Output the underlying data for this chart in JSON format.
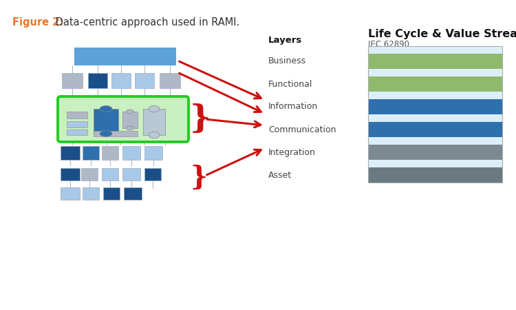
{
  "title_label": "Figure 2:",
  "title_text": " Data-centric approach used in RAMI.",
  "title_color": "#E8762C",
  "title_text_color": "#333333",
  "lc_title": "Life Cycle & Value Stream",
  "lc_subtitle": "IEC 62890",
  "layers": [
    "Business",
    "Functional",
    "Information",
    "Communication",
    "Integration",
    "Asset"
  ],
  "stripe_colors": [
    "#dceef8",
    "#8fba6b",
    "#dceef8",
    "#8fba6b",
    "#dceef8",
    "#2e6fad",
    "#c8dce8",
    "#2e6fad",
    "#c8dce8",
    "#7a8a90",
    "#c8dce8",
    "#6a7a80"
  ],
  "bg_color": "#ffffff",
  "arrow_color": "#cc1111",
  "blue_light": "#5ba3d9",
  "blue_med": "#2e6fad",
  "blue_dark": "#1a4f8a",
  "blue_pale": "#a8c8e8",
  "gray_light": "#b0b8c8",
  "gray_med": "#8090a0",
  "green_border": "#22cc22",
  "green_fill": "#c8f0c0"
}
